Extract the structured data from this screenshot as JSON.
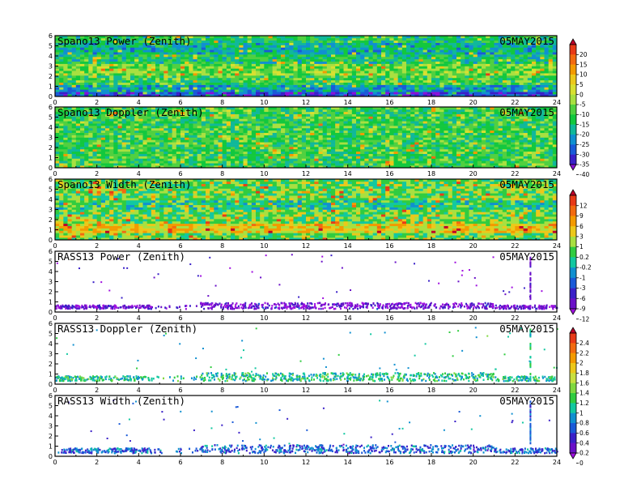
{
  "chart_data": [
    {
      "type": "heatmap",
      "title": "Spano13 Power (Zenith)",
      "date": "05MAY2015",
      "xlim": [
        0,
        24
      ],
      "ylim": [
        0,
        6
      ],
      "xticks": [
        "0",
        "2",
        "4",
        "6",
        "8",
        "10",
        "12",
        "14",
        "16",
        "18",
        "20",
        "22",
        "24"
      ],
      "yticks": [
        "0",
        "1",
        "2",
        "3",
        "4",
        "5",
        "6"
      ],
      "field": "dense",
      "level": [
        [
          0,
          0.4,
          -33
        ],
        [
          0.4,
          1.2,
          -24
        ],
        [
          1.2,
          2,
          -15
        ],
        [
          2,
          3.2,
          -11
        ],
        [
          3.2,
          4.2,
          -18
        ],
        [
          4.2,
          5.4,
          -22
        ],
        [
          5.4,
          6,
          -17
        ]
      ]
    },
    {
      "type": "heatmap",
      "title": "Spano13 Doppler (Zenith)",
      "date": "05MAY2015",
      "xlim": [
        0,
        24
      ],
      "ylim": [
        0,
        6
      ],
      "xticks": [
        "0",
        "2",
        "4",
        "6",
        "8",
        "10",
        "12",
        "14",
        "16",
        "18",
        "20",
        "22",
        "24"
      ],
      "yticks": [
        "0",
        "1",
        "2",
        "3",
        "4",
        "5",
        "6"
      ],
      "field": "dense",
      "level": [
        [
          0,
          6,
          -15
        ]
      ]
    },
    {
      "type": "heatmap",
      "title": "Spano13 Width (Zenith)",
      "date": "05MAY2015",
      "xlim": [
        0,
        24
      ],
      "ylim": [
        0,
        6
      ],
      "xticks": [
        "0",
        "2",
        "4",
        "6",
        "8",
        "10",
        "12",
        "14",
        "16",
        "18",
        "20",
        "22",
        "24"
      ],
      "yticks": [
        "0",
        "1",
        "2",
        "3",
        "4",
        "5",
        "6"
      ],
      "field": "dense",
      "level": [
        [
          0,
          0.6,
          0.6
        ],
        [
          0.6,
          1.6,
          4
        ],
        [
          1.6,
          3,
          0.8
        ],
        [
          3,
          4,
          -1
        ],
        [
          4,
          6,
          0.6
        ]
      ]
    },
    {
      "type": "heatmap",
      "title": "RASS13 Power (Zenith)",
      "date": "05MAY2015",
      "xlim": [
        0,
        24
      ],
      "ylim": [
        0,
        6
      ],
      "xticks": [
        "0",
        "2",
        "4",
        "6",
        "8",
        "10",
        "12",
        "14",
        "16",
        "18",
        "20",
        "22",
        "24"
      ],
      "yticks": [
        "0",
        "1",
        "2",
        "3",
        "4",
        "5",
        "6"
      ],
      "field": "sparse",
      "level": [
        [
          0.4,
          1.0,
          -10
        ]
      ]
    },
    {
      "type": "heatmap",
      "title": "RASS13 Doppler (Zenith)",
      "date": "05MAY2015",
      "xlim": [
        0,
        24
      ],
      "ylim": [
        0,
        6
      ],
      "xticks": [
        "0",
        "2",
        "4",
        "6",
        "8",
        "10",
        "12",
        "14",
        "16",
        "18",
        "20",
        "22",
        "24"
      ],
      "yticks": [
        "0",
        "1",
        "2",
        "3",
        "4",
        "5",
        "6"
      ],
      "field": "sparse",
      "level": [
        [
          0.4,
          1.2,
          1.0
        ]
      ]
    },
    {
      "type": "heatmap",
      "title": "RASS13 Width (Zenith)",
      "date": "05MAY2015",
      "xlim": [
        0,
        24
      ],
      "ylim": [
        0,
        6
      ],
      "xticks": [
        "0",
        "2",
        "4",
        "6",
        "8",
        "10",
        "12",
        "14",
        "16",
        "18",
        "20",
        "22",
        "24"
      ],
      "yticks": [
        "0",
        "1",
        "2",
        "3",
        "4",
        "5",
        "6"
      ],
      "field": "sparse",
      "level": [
        [
          0.4,
          1.2,
          0.6
        ]
      ]
    }
  ],
  "colorbars": [
    {
      "labels": [
        "20",
        "15",
        "10",
        "5",
        "0",
        "-5",
        "-10",
        "-15",
        "-20",
        "-25",
        "-30",
        "-35",
        "-40"
      ],
      "colors": [
        "#c0002a",
        "#e83a18",
        "#f26a10",
        "#f39a00",
        "#ecc81a",
        "#d8e030",
        "#a8e040",
        "#50d040",
        "#12c83e",
        "#10b89a",
        "#1090d0",
        "#1a5ad8",
        "#3a20c8",
        "#8a10d8"
      ]
    },
    {
      "labels": [
        "12",
        "9",
        "6",
        "3",
        "1",
        "0.2",
        "-0.2",
        "-1",
        "-3",
        "-6",
        "-9",
        "-12"
      ],
      "colors": [
        "#c0002a",
        "#e83a18",
        "#f26a10",
        "#f39a00",
        "#ecc81a",
        "#a8e040",
        "#30cc40",
        "#12c8a0",
        "#1090d0",
        "#1a5ad8",
        "#3a20c8",
        "#6a10c8",
        "#a010e0"
      ]
    },
    {
      "labels": [
        "2.4",
        "2.2",
        "2",
        "1.8",
        "1.6",
        "1.4",
        "1.2",
        "1",
        "0.8",
        "0.6",
        "0.4",
        "0.2",
        "0"
      ],
      "colors": [
        "#c0002a",
        "#e83a18",
        "#f26a10",
        "#f39a00",
        "#ecc81a",
        "#c8e040",
        "#80d840",
        "#30cc40",
        "#12c8a0",
        "#1090d0",
        "#1a5ad8",
        "#3a20c8",
        "#6a10c8",
        "#a010e0"
      ]
    }
  ]
}
